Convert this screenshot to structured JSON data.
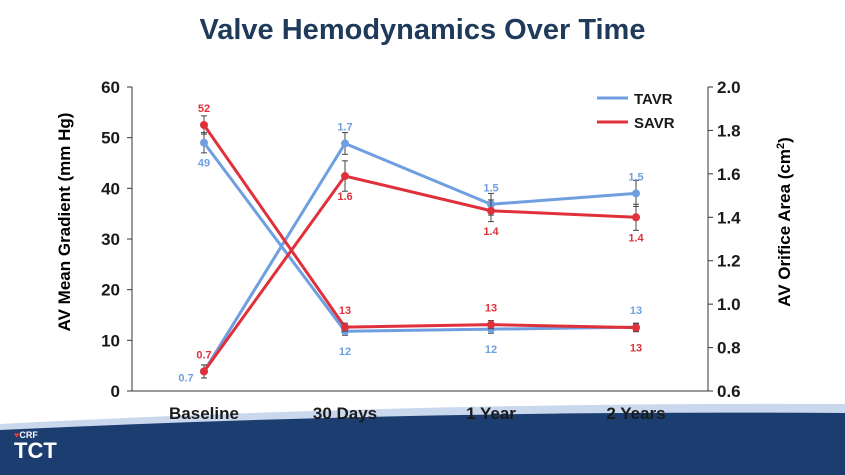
{
  "title": "Valve Hemodynamics Over Time",
  "logo": {
    "crf": "CRF",
    "tct": "TCT"
  },
  "colors": {
    "tavr": "#6f9fe0",
    "savr": "#e0313b",
    "footer_dark": "#1c3d70",
    "footer_light": "#c9d8ec"
  },
  "chart_data": {
    "type": "line",
    "title": "Valve Hemodynamics Over Time",
    "categories": [
      "Baseline",
      "30 Days",
      "1 Year",
      "2 Years"
    ],
    "y_left": {
      "label": "AV Mean Gradient (mm Hg)",
      "range": [
        0,
        60
      ],
      "ticks": [
        "0",
        "10",
        "20",
        "30",
        "40",
        "50",
        "60"
      ]
    },
    "y_right": {
      "label_main": "AV Orifice Area (cm",
      "label_sup": "2",
      "label_close": ")",
      "range": [
        0.6,
        2.0
      ],
      "ticks": [
        "0.6",
        "0.8",
        "1.0",
        "1.2",
        "1.4",
        "1.6",
        "1.8",
        "2.0"
      ]
    },
    "legend": {
      "position": "top-right",
      "items": [
        "TAVR",
        "SAVR"
      ]
    },
    "series": [
      {
        "name": "TAVR",
        "measure": "gradient",
        "axis": "left",
        "values": [
          49,
          11.8,
          12.2,
          12.6
        ],
        "err": [
          2,
          0.8,
          0.8,
          0.8
        ],
        "labels": [
          "49",
          "12",
          "12",
          "13"
        ],
        "label_pos": [
          "below",
          "below",
          "below",
          "above"
        ]
      },
      {
        "name": "TAVR",
        "measure": "area",
        "axis": "right",
        "values": [
          0.69,
          1.74,
          1.46,
          1.51
        ],
        "err": [
          0.03,
          0.05,
          0.05,
          0.06
        ],
        "labels": [
          "0.7",
          "1.7",
          "1.5",
          "1.5"
        ],
        "label_pos": [
          "below-left",
          "above",
          "above",
          "above"
        ]
      },
      {
        "name": "SAVR",
        "measure": "gradient",
        "axis": "left",
        "values": [
          52.5,
          12.6,
          13.1,
          12.5
        ],
        "err": [
          1.8,
          0.8,
          0.8,
          0.8
        ],
        "labels": [
          "52",
          "13",
          "13",
          "13"
        ],
        "label_pos": [
          "above",
          "above",
          "above",
          "below"
        ]
      },
      {
        "name": "SAVR",
        "measure": "area",
        "axis": "right",
        "values": [
          0.69,
          1.59,
          1.43,
          1.4
        ],
        "err": [
          0.03,
          0.07,
          0.05,
          0.06
        ],
        "labels": [
          "0.7",
          "1.6",
          "1.4",
          "1.4"
        ],
        "label_pos": [
          "above",
          "below",
          "below",
          "below"
        ]
      }
    ]
  }
}
